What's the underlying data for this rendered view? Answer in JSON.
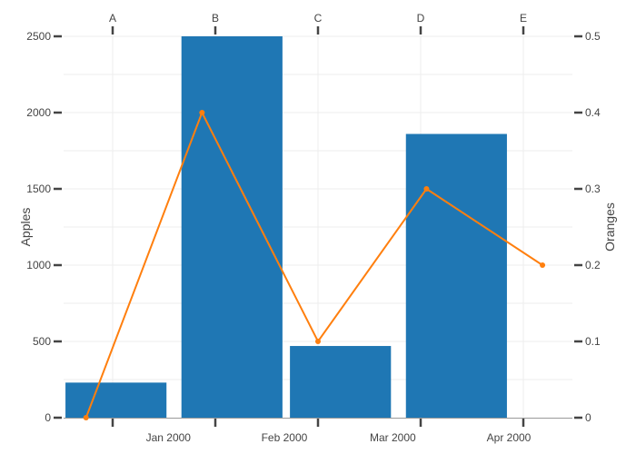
{
  "chart_data": {
    "type": "bar+line",
    "apples": {
      "axis_title": "Apples",
      "ylim": [
        0,
        2500
      ],
      "yticks": [
        0,
        500,
        1000,
        1500,
        2000,
        2500
      ],
      "color": "#1f77b4",
      "bars": [
        {
          "x": "1999-12-18",
          "value": 230
        },
        {
          "x": "2000-01-18",
          "value": 2500
        },
        {
          "x": "2000-02-16",
          "value": 470
        },
        {
          "x": "2000-03-18",
          "value": 1860
        }
      ]
    },
    "oranges": {
      "axis_title": "Oranges",
      "ylim": [
        0,
        0.5
      ],
      "yticks": [
        "0",
        "0.1",
        "0.2",
        "0.3",
        "0.4",
        "0.5"
      ],
      "color": "#ff7f0e",
      "points": [
        {
          "x": "1999-12-10",
          "value": 0
        },
        {
          "x": "2000-01-10",
          "value": 0.4
        },
        {
          "x": "2000-02-10",
          "value": 0.1
        },
        {
          "x": "2000-03-10",
          "value": 0.3
        },
        {
          "x": "2000-04-10",
          "value": 0.2
        }
      ]
    },
    "x_bottom": {
      "range": [
        "1999-12-04",
        "2000-04-18"
      ],
      "ticks": [
        {
          "x": "2000-01-01",
          "label": "Jan 2000"
        },
        {
          "x": "2000-02-01",
          "label": "Feb 2000"
        },
        {
          "x": "2000-03-01",
          "label": "Mar 2000"
        },
        {
          "x": "2000-04-01",
          "label": "Apr 2000"
        }
      ]
    },
    "x_top": {
      "categories": [
        "A",
        "B",
        "C",
        "D",
        "E"
      ]
    },
    "grid": true
  }
}
